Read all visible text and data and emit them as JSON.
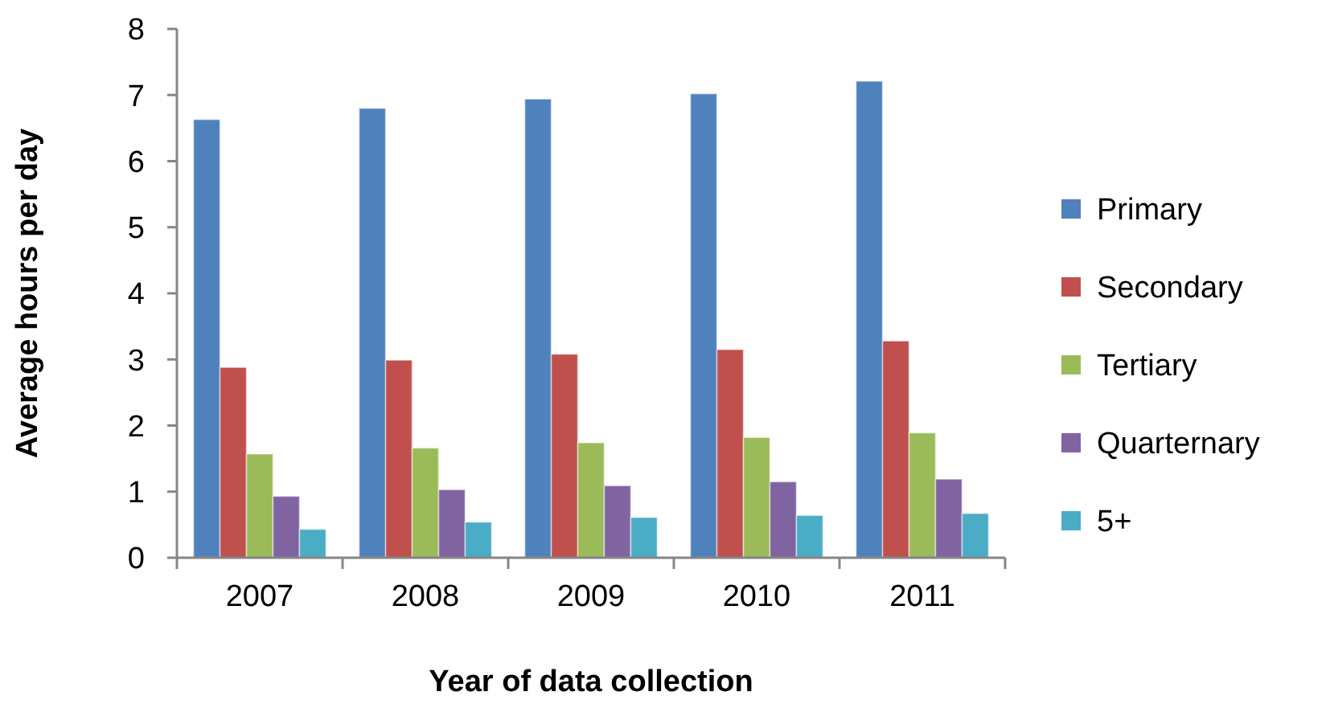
{
  "chart_data": {
    "type": "bar",
    "xlabel": "Year of data collection",
    "ylabel": "Average hours per day",
    "categories": [
      "2007",
      "2008",
      "2009",
      "2010",
      "2011"
    ],
    "series": [
      {
        "name": "Primary",
        "color": "#4f81bd",
        "values": [
          6.63,
          6.8,
          6.94,
          7.02,
          7.21
        ]
      },
      {
        "name": "Secondary",
        "color": "#c0504d",
        "values": [
          2.88,
          2.99,
          3.08,
          3.15,
          3.28
        ]
      },
      {
        "name": "Tertiary",
        "color": "#9bbb59",
        "values": [
          1.57,
          1.66,
          1.74,
          1.82,
          1.89
        ]
      },
      {
        "name": "Quarternary",
        "color": "#8064a2",
        "values": [
          0.93,
          1.03,
          1.09,
          1.15,
          1.19
        ]
      },
      {
        "name": "5+",
        "color": "#4bacc6",
        "values": [
          0.43,
          0.54,
          0.61,
          0.64,
          0.67
        ]
      }
    ],
    "ylim": [
      0,
      8
    ],
    "yticks": [
      0,
      1,
      2,
      3,
      4,
      5,
      6,
      7,
      8
    ],
    "grid": false,
    "legend": "right"
  }
}
